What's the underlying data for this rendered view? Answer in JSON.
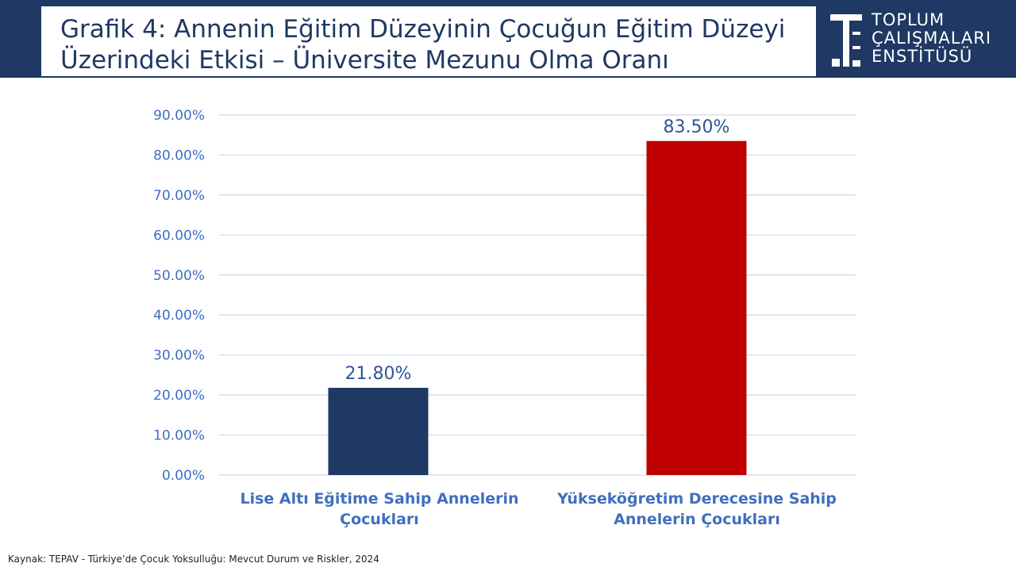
{
  "header": {
    "title_lines": [
      "Grafik 4: Annenin Eğitim Düzeyinin Çocuğun Eğitim Düzeyi",
      "Üzerindeki Etkisi – Üniversite Mezunu Olma Oranı"
    ],
    "logo_lines": [
      "TOPLUM",
      "ÇALIŞMALARI",
      "ENSTİTÜSÜ"
    ],
    "colors": {
      "background": "#1f3864",
      "title": "#1f3864"
    }
  },
  "chart_data": {
    "type": "bar",
    "categories": [
      [
        "Lise Altı Eğitime Sahip Annelerin",
        "Çocukları"
      ],
      [
        "Yükseköğretim Derecesine Sahip",
        "Annelerin Çocukları"
      ]
    ],
    "values": [
      21.8,
      83.5
    ],
    "value_labels": [
      "21.80%",
      "83.50%"
    ],
    "bar_colors": [
      "#1f3864",
      "#c00000"
    ],
    "ylim": [
      0,
      90
    ],
    "yticks": [
      0,
      10,
      20,
      30,
      40,
      50,
      60,
      70,
      80,
      90
    ],
    "ytick_labels": [
      "0.00%",
      "10.00%",
      "20.00%",
      "30.00%",
      "40.00%",
      "50.00%",
      "60.00%",
      "70.00%",
      "80.00%",
      "90.00%"
    ],
    "grid": true,
    "legend": "none"
  },
  "footer": {
    "source": "Kaynak: TEPAV - Türkiye’de Çocuk Yoksulluğu: Mevcut Durum ve Riskler, 2024"
  }
}
